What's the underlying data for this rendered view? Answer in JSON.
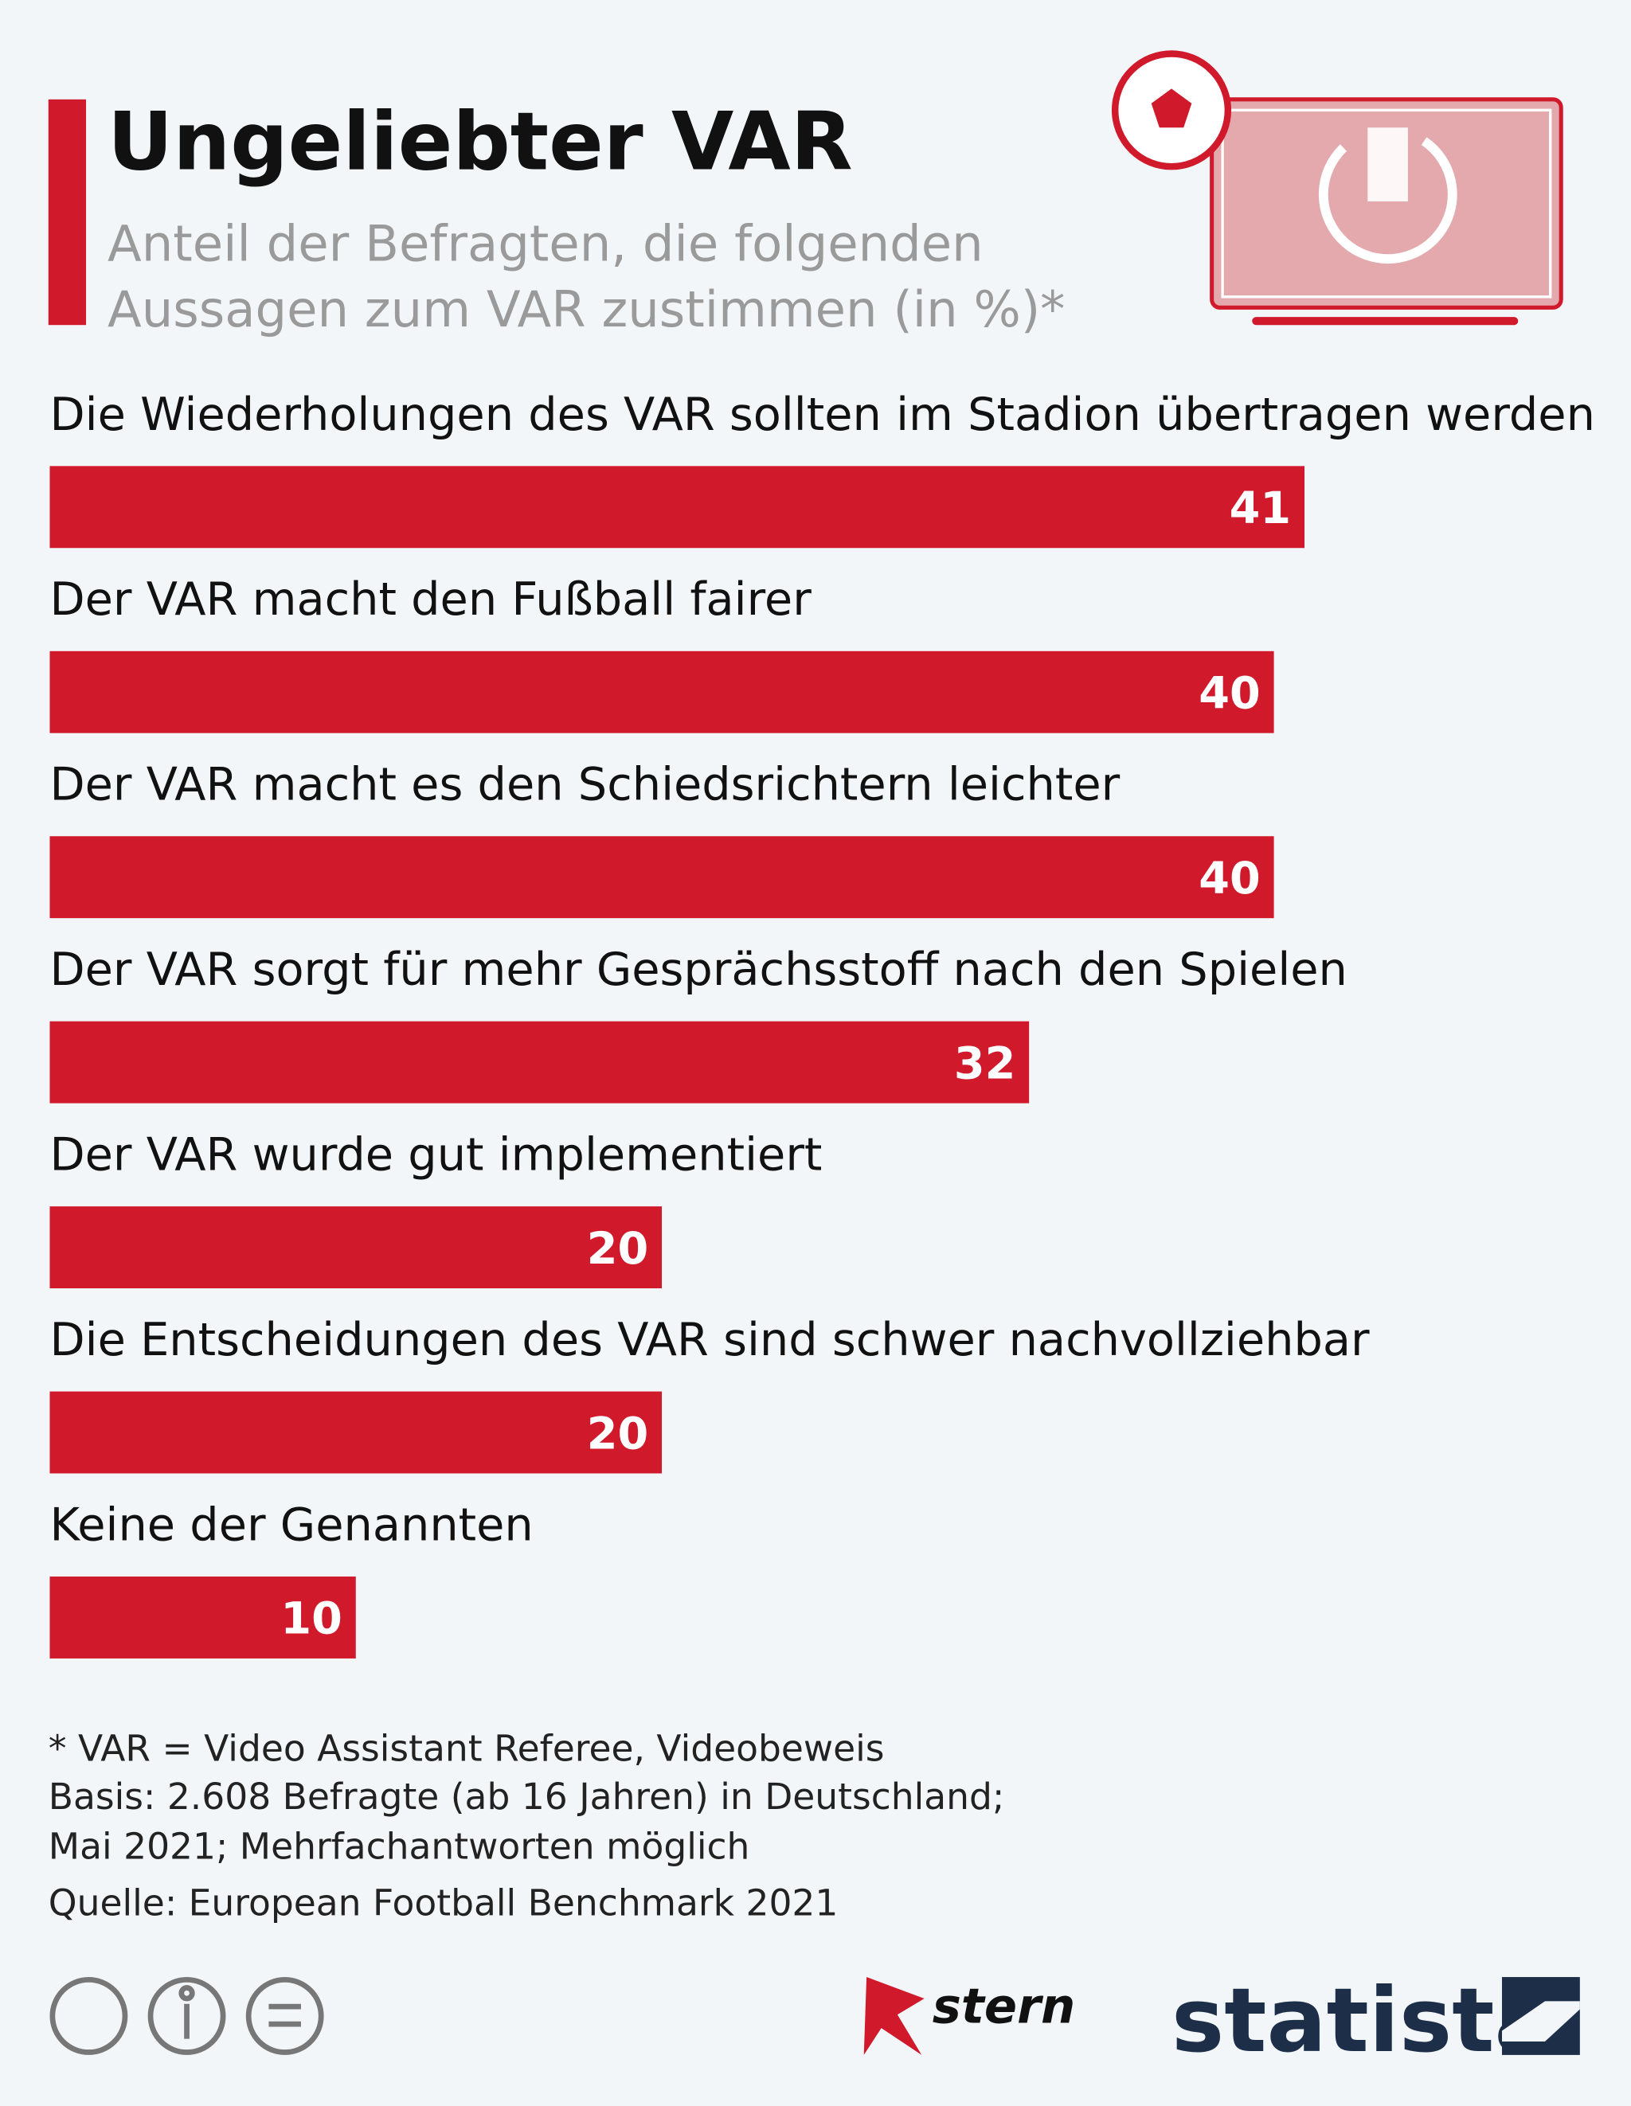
{
  "chart_data": {
    "type": "bar",
    "orientation": "horizontal",
    "title": "Ungeliebter VAR",
    "subtitle": [
      "Anteil der Befragten, die folgenden",
      "Aussagen zum VAR zustimmen (in %)*"
    ],
    "categories": [
      "Die Wiederholungen des VAR sollten im Stadion übertragen werden",
      "Der VAR macht den Fußball fairer",
      "Der VAR macht es den Schiedsrichtern leichter",
      "Der VAR sorgt für mehr Gesprächsstoff nach den Spielen",
      "Der VAR wurde gut implementiert",
      "Die Entscheidungen des VAR sind schwer nachvollziehbar",
      "Keine der Genannten"
    ],
    "values": [
      41,
      40,
      40,
      32,
      20,
      20,
      10
    ],
    "color": "#d0192b",
    "notes": [
      "* VAR = Video Assistant Referee, Videobeweis",
      "Basis: 2.608 Befragte (ab 16 Jahren) in Deutschland;",
      "Mai 2021; Mehrfachantworten möglich"
    ],
    "source": "Quelle: European Football Benchmark 2021",
    "logos": [
      "stern",
      "statista"
    ]
  }
}
